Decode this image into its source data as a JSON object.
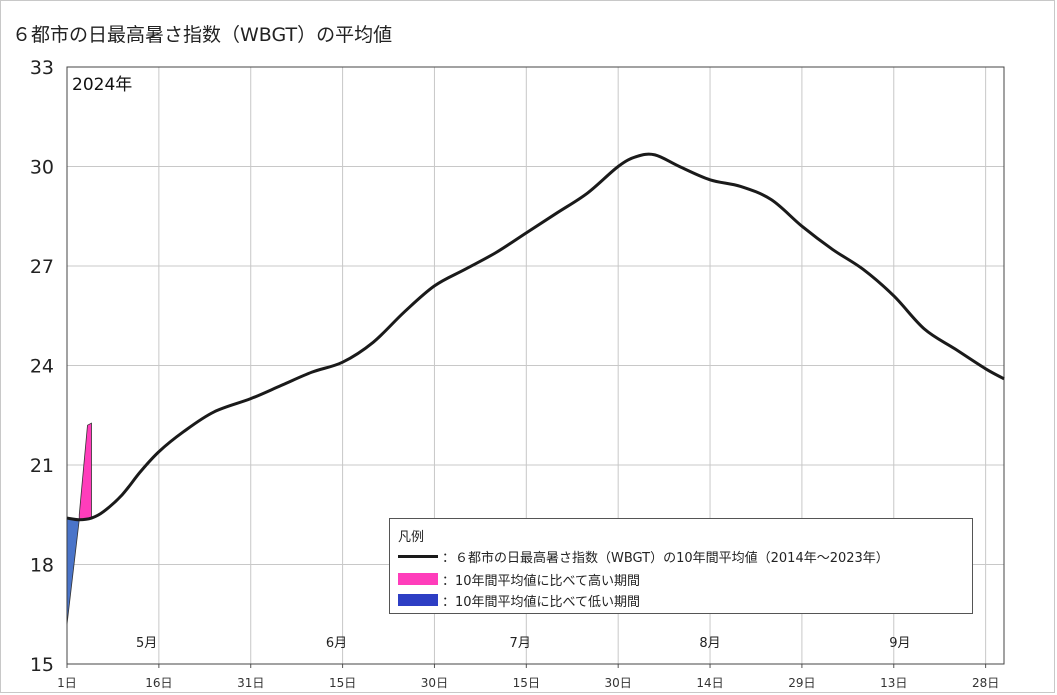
{
  "title": "６都市の日最高暑さ指数（WBGT）の平均値",
  "chart_data": {
    "type": "line",
    "year_label": "2024年",
    "ylim": [
      15,
      33
    ],
    "yticks": [
      15,
      18,
      21,
      24,
      27,
      30,
      33
    ],
    "xlim": [
      "2024-05-01",
      "2024-10-01"
    ],
    "x_ticks": [
      {
        "date": "2024-05-01",
        "label": "1日"
      },
      {
        "date": "2024-05-16",
        "label": "16日"
      },
      {
        "date": "2024-05-31",
        "label": "31日"
      },
      {
        "date": "2024-06-15",
        "label": "15日"
      },
      {
        "date": "2024-06-30",
        "label": "30日"
      },
      {
        "date": "2024-07-15",
        "label": "15日"
      },
      {
        "date": "2024-07-30",
        "label": "30日"
      },
      {
        "date": "2024-08-14",
        "label": "14日"
      },
      {
        "date": "2024-08-29",
        "label": "29日"
      },
      {
        "date": "2024-09-13",
        "label": "13日"
      },
      {
        "date": "2024-09-28",
        "label": "28日"
      }
    ],
    "month_labels": [
      {
        "date": "2024-05-14",
        "label": "5月"
      },
      {
        "date": "2024-06-14",
        "label": "6月"
      },
      {
        "date": "2024-07-14",
        "label": "7月"
      },
      {
        "date": "2024-08-14",
        "label": "8月"
      },
      {
        "date": "2024-09-14",
        "label": "9月"
      }
    ],
    "series": [
      {
        "name": "６都市の日最高暑さ指数（WBGT）の10年間平均値（2014年～2023年）",
        "color": "#1a1a1a",
        "points": [
          [
            "2024-05-01",
            19.4
          ],
          [
            "2024-05-03",
            19.35
          ],
          [
            "2024-05-05",
            19.4
          ],
          [
            "2024-05-07",
            19.6
          ],
          [
            "2024-05-10",
            20.1
          ],
          [
            "2024-05-13",
            20.8
          ],
          [
            "2024-05-16",
            21.4
          ],
          [
            "2024-05-20",
            22.0
          ],
          [
            "2024-05-25",
            22.6
          ],
          [
            "2024-05-31",
            23.0
          ],
          [
            "2024-06-05",
            23.4
          ],
          [
            "2024-06-10",
            23.8
          ],
          [
            "2024-06-15",
            24.1
          ],
          [
            "2024-06-20",
            24.7
          ],
          [
            "2024-06-25",
            25.6
          ],
          [
            "2024-06-30",
            26.4
          ],
          [
            "2024-07-05",
            26.9
          ],
          [
            "2024-07-10",
            27.4
          ],
          [
            "2024-07-15",
            28.0
          ],
          [
            "2024-07-20",
            28.6
          ],
          [
            "2024-07-25",
            29.2
          ],
          [
            "2024-07-30",
            30.0
          ],
          [
            "2024-08-02",
            30.3
          ],
          [
            "2024-08-05",
            30.35
          ],
          [
            "2024-08-09",
            30.0
          ],
          [
            "2024-08-14",
            29.6
          ],
          [
            "2024-08-19",
            29.4
          ],
          [
            "2024-08-24",
            29.0
          ],
          [
            "2024-08-29",
            28.2
          ],
          [
            "2024-09-03",
            27.5
          ],
          [
            "2024-09-08",
            26.9
          ],
          [
            "2024-09-13",
            26.1
          ],
          [
            "2024-09-18",
            25.1
          ],
          [
            "2024-09-23",
            24.5
          ],
          [
            "2024-09-28",
            23.9
          ],
          [
            "2024-10-01",
            23.6
          ]
        ]
      }
    ],
    "actual_2024": [
      [
        "2024-05-01",
        16.2
      ],
      [
        "2024-05-03",
        19.5
      ],
      [
        "2024-05-05",
        22.2
      ],
      [
        "2024-05-05",
        22.2
      ],
      [
        "2024-05-05",
        19.4
      ]
    ],
    "legend": {
      "title": "凡例",
      "items": [
        {
          "key": "avg",
          "label": "：６都市の日最高暑さ指数（WBGT）の10年間平均値（2014年～2023年）",
          "color": "#1a1a1a"
        },
        {
          "key": "high",
          "label": "：10年間平均値に比べて高い期間",
          "color": "#ff3dbb"
        },
        {
          "key": "low",
          "label": "：10年間平均値に比べて低い期間",
          "color": "#2d3ec4"
        }
      ]
    },
    "colors": {
      "avg_line": "#1a1a1a",
      "high_fill": "#ff3dbb",
      "low_fill": "#4a74c9",
      "grid": "#c8c8c8"
    },
    "grid": true,
    "legend_position": "bottom-right"
  }
}
